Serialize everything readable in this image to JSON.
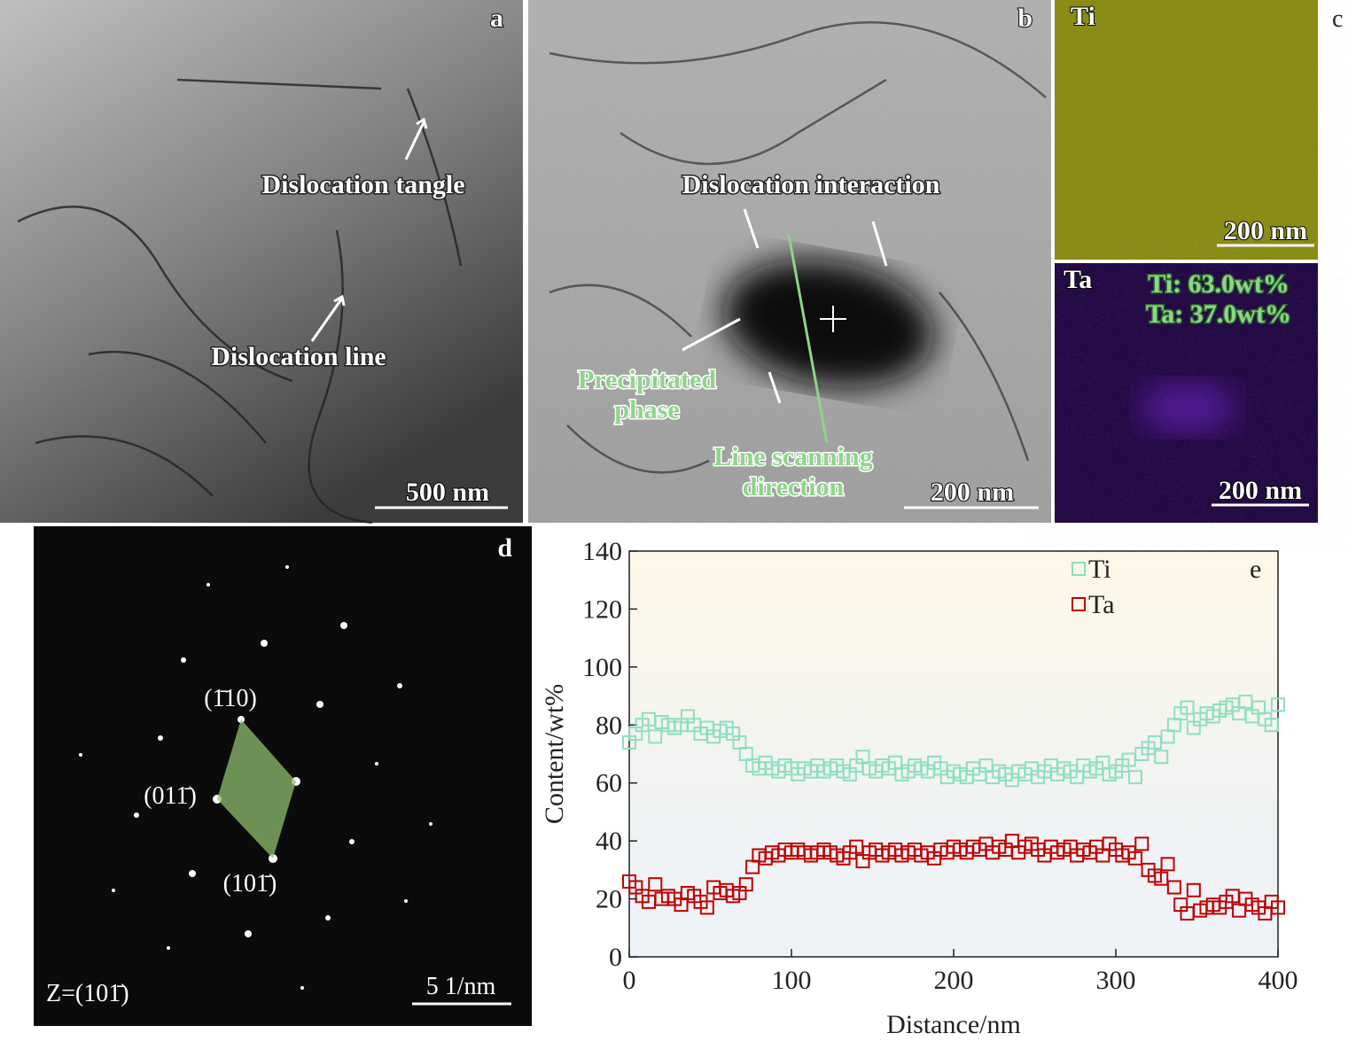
{
  "panels": {
    "a": {
      "label": "a",
      "dislocation_tangle": "Dislocation tangle",
      "dislocation_line": "Dislocation line",
      "scale_bar": "500 nm"
    },
    "b": {
      "label": "b",
      "dislocation_interaction": "Dislocation interaction",
      "precipitated_phase": [
        "Precipitated",
        "phase"
      ],
      "line_scanning": [
        "Line scanning",
        "direction"
      ],
      "scale_bar": "200 nm"
    },
    "c": {
      "label": "c",
      "ti": {
        "label": "Ti",
        "scale_bar": "200 nm"
      },
      "ta": {
        "label": "Ta",
        "composition": [
          "Ti: 63.0wt%",
          "Ta: 37.0wt%"
        ],
        "scale_bar": "200 nm"
      }
    },
    "d": {
      "label": "d",
      "indices": [
        "(1̄10)",
        "(011̄)",
        "(101̄)"
      ],
      "zone_axis": "Z=(101̄)",
      "scale_bar": "5 1/nm"
    }
  },
  "chart_data": {
    "type": "scatter",
    "panel_label": "e",
    "xlabel": "Distance/nm",
    "ylabel": "Content/wt%",
    "xlim": [
      0,
      400
    ],
    "xticks": [
      0,
      100,
      200,
      300,
      400
    ],
    "ylim": [
      0,
      140
    ],
    "yticks": [
      0,
      20,
      40,
      60,
      80,
      100,
      120,
      140
    ],
    "legend": "upper left",
    "x": [
      0,
      4,
      8,
      12,
      16,
      20,
      24,
      28,
      32,
      36,
      40,
      44,
      48,
      52,
      56,
      60,
      64,
      68,
      72,
      76,
      80,
      84,
      88,
      92,
      96,
      100,
      104,
      108,
      112,
      116,
      120,
      124,
      128,
      132,
      136,
      140,
      144,
      148,
      152,
      156,
      160,
      164,
      168,
      172,
      176,
      180,
      184,
      188,
      192,
      196,
      200,
      204,
      208,
      212,
      216,
      220,
      224,
      228,
      232,
      236,
      240,
      244,
      248,
      252,
      256,
      260,
      264,
      268,
      272,
      276,
      280,
      284,
      288,
      292,
      296,
      300,
      304,
      308,
      312,
      316,
      320,
      324,
      328,
      332,
      336,
      340,
      344,
      348,
      352,
      356,
      360,
      364,
      368,
      372,
      376,
      380,
      384,
      388,
      392,
      396,
      400
    ],
    "series": [
      {
        "name": "Ti",
        "color": "#8ddfbd",
        "values": [
          74,
          77,
          80,
          82,
          76,
          81,
          80,
          79,
          80,
          83,
          80,
          77,
          79,
          76,
          78,
          79,
          77,
          74,
          70,
          66,
          65,
          67,
          65,
          64,
          66,
          65,
          63,
          65,
          64,
          66,
          64,
          65,
          66,
          64,
          63,
          66,
          69,
          65,
          64,
          66,
          65,
          67,
          63,
          64,
          66,
          65,
          64,
          67,
          65,
          62,
          64,
          63,
          62,
          65,
          63,
          66,
          62,
          64,
          63,
          61,
          64,
          63,
          65,
          62,
          64,
          66,
          63,
          65,
          64,
          62,
          66,
          64,
          65,
          67,
          63,
          64,
          66,
          68,
          62,
          70,
          72,
          74,
          69,
          76,
          80,
          84,
          86,
          79,
          82,
          84,
          83,
          85,
          86,
          87,
          84,
          88,
          83,
          86,
          82,
          80,
          87
        ]
      },
      {
        "name": "Ta",
        "color": "#c00000",
        "values": [
          26,
          24,
          21,
          19,
          25,
          20,
          21,
          20,
          18,
          22,
          21,
          19,
          17,
          24,
          22,
          23,
          21,
          22,
          25,
          31,
          35,
          34,
          36,
          35,
          37,
          36,
          37,
          36,
          35,
          36,
          37,
          36,
          35,
          34,
          36,
          38,
          33,
          36,
          37,
          35,
          36,
          37,
          35,
          36,
          37,
          35,
          36,
          34,
          37,
          36,
          38,
          37,
          36,
          38,
          37,
          39,
          36,
          38,
          37,
          40,
          36,
          38,
          39,
          37,
          35,
          38,
          36,
          37,
          38,
          35,
          37,
          36,
          38,
          35,
          39,
          37,
          35,
          36,
          34,
          39,
          30,
          28,
          27,
          32,
          24,
          18,
          15,
          23,
          16,
          17,
          18,
          17,
          19,
          21,
          16,
          20,
          18,
          17,
          15,
          19,
          17
        ]
      }
    ]
  }
}
